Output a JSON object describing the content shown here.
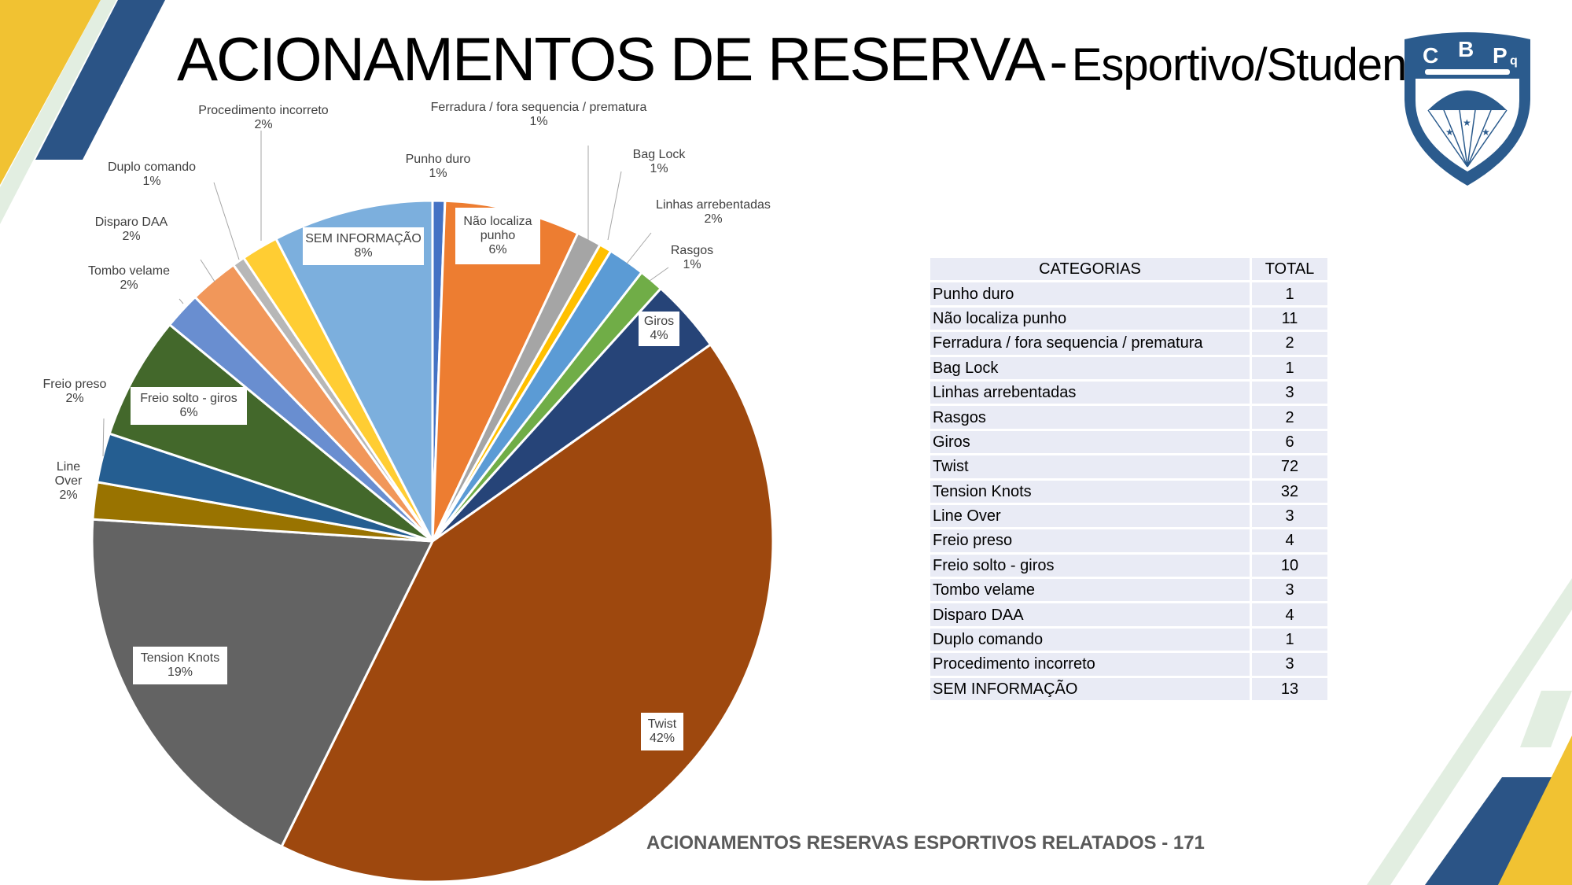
{
  "title": {
    "main": "ACIONAMENTOS DE RESERVA",
    "separator": "-",
    "sub": "Esportivo/Student"
  },
  "logo": {
    "icon": "cbpq-parachute-shield-icon",
    "letters": [
      "C",
      "B",
      "P",
      "q"
    ],
    "colors": {
      "primary": "#2b5b8d",
      "background": "#ffffff"
    }
  },
  "colors": {
    "navy": "#2b5486",
    "gold": "#f1c232",
    "light_green": "#e2eee1"
  },
  "chart_data": {
    "type": "pie",
    "start_angle_deg": 0,
    "direction": "clockwise",
    "slices": [
      {
        "label": "Punho duro",
        "value": 1,
        "percent": "1%",
        "color": "#4472c4"
      },
      {
        "label": "Não localiza punho",
        "value": 11,
        "percent": "6%",
        "color": "#ed7d31"
      },
      {
        "label": "Ferradura / fora sequencia / prematura",
        "value": 2,
        "percent": "1%",
        "color": "#a5a5a5"
      },
      {
        "label": "Bag Lock",
        "value": 1,
        "percent": "1%",
        "color": "#ffc000"
      },
      {
        "label": "Linhas arrebentadas",
        "value": 3,
        "percent": "2%",
        "color": "#5b9bd5"
      },
      {
        "label": "Rasgos",
        "value": 2,
        "percent": "1%",
        "color": "#70ad47"
      },
      {
        "label": "Giros",
        "value": 6,
        "percent": "4%",
        "color": "#264478"
      },
      {
        "label": "Twist",
        "value": 72,
        "percent": "42%",
        "color": "#9e480e"
      },
      {
        "label": "Tension Knots",
        "value": 32,
        "percent": "19%",
        "color": "#636363"
      },
      {
        "label": "Line Over",
        "value": 3,
        "percent": "2%",
        "color": "#997300"
      },
      {
        "label": "Freio preso",
        "value": 4,
        "percent": "2%",
        "color": "#255e91"
      },
      {
        "label": "Freio solto - giros",
        "value": 10,
        "percent": "6%",
        "color": "#43682b"
      },
      {
        "label": "Tombo velame",
        "value": 3,
        "percent": "2%",
        "color": "#698ed0"
      },
      {
        "label": "Disparo DAA",
        "value": 4,
        "percent": "2%",
        "color": "#f1975a"
      },
      {
        "label": "Duplo comando",
        "value": 1,
        "percent": "1%",
        "color": "#b7b7b7"
      },
      {
        "label": "Procedimento incorreto",
        "value": 3,
        "percent": "2%",
        "color": "#ffcd33"
      },
      {
        "label": "SEM INFORMAÇÃO",
        "value": 13,
        "percent": "8%",
        "color": "#7cafdd"
      }
    ]
  },
  "table": {
    "headers": {
      "category": "CATEGORIAS",
      "total": "TOTAL"
    },
    "rows": [
      {
        "category": "Punho duro",
        "total": "1"
      },
      {
        "category": "Não localiza punho",
        "total": "11"
      },
      {
        "category": "Ferradura / fora sequencia / prematura",
        "total": "2"
      },
      {
        "category": "Bag Lock",
        "total": "1"
      },
      {
        "category": "Linhas arrebentadas",
        "total": "3"
      },
      {
        "category": "Rasgos",
        "total": "2"
      },
      {
        "category": "Giros",
        "total": "6"
      },
      {
        "category": "Twist",
        "total": "72"
      },
      {
        "category": "Tension Knots",
        "total": "32"
      },
      {
        "category": "Line Over",
        "total": "3"
      },
      {
        "category": "Freio preso",
        "total": "4"
      },
      {
        "category": "Freio solto - giros",
        "total": "10"
      },
      {
        "category": "Tombo velame",
        "total": "3"
      },
      {
        "category": "Disparo DAA",
        "total": "4"
      },
      {
        "category": "Duplo comando",
        "total": "1"
      },
      {
        "category": "Procedimento incorreto",
        "total": "3"
      },
      {
        "category": "SEM INFORMAÇÃO",
        "total": "13"
      }
    ]
  },
  "footer": "ACIONAMENTOS RESERVAS ESPORTIVOS RELATADOS  - 171"
}
